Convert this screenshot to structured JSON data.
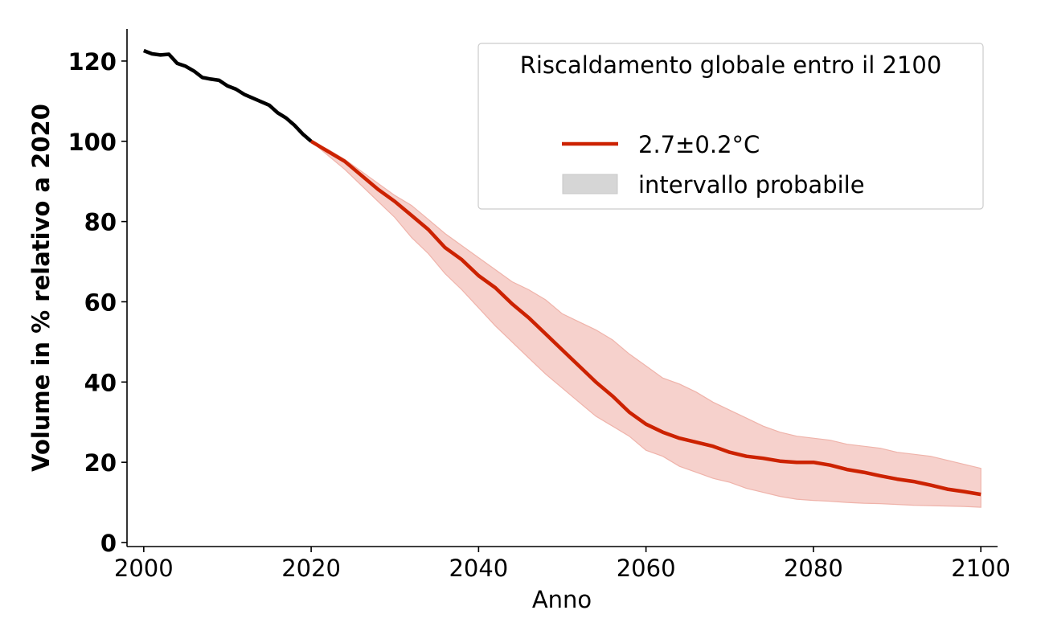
{
  "chart_data": {
    "type": "line",
    "title": "",
    "xlabel": "Anno",
    "ylabel": "Volume in % relativo a 2020",
    "xlim": [
      1998,
      2102
    ],
    "ylim": [
      -1,
      128
    ],
    "xticks": [
      2000,
      2020,
      2040,
      2060,
      2080,
      2100
    ],
    "yticks": [
      0,
      20,
      40,
      60,
      80,
      100,
      120
    ],
    "grid": false,
    "legend": {
      "placement": "upper right",
      "title": "Riscaldamento globale entro il 2100",
      "entries": [
        "2.7±0.2°C",
        "intervallo probabile"
      ]
    },
    "colors": {
      "historical": "#000000",
      "projection": "#cc2200",
      "band_fill": "#f6d1cc",
      "band_edge": "#efb3aa",
      "legend_patch": "#d6d6d6"
    },
    "series": [
      {
        "role": "historical",
        "x": [
          2000,
          2001,
          2002,
          2003,
          2004,
          2005,
          2006,
          2007,
          2008,
          2009,
          2010,
          2011,
          2012,
          2013,
          2014,
          2015,
          2016,
          2017,
          2018,
          2019,
          2020
        ],
        "y": [
          122.6,
          121.8,
          121.5,
          121.7,
          119.4,
          118.7,
          117.5,
          115.9,
          115.5,
          115.2,
          113.8,
          113.0,
          111.7,
          110.8,
          109.9,
          109.0,
          107.1,
          105.8,
          104.0,
          101.8,
          100.0
        ]
      },
      {
        "name": "2.7±0.2°C",
        "role": "projection",
        "x": [
          2020,
          2022,
          2024,
          2026,
          2028,
          2030,
          2032,
          2034,
          2036,
          2038,
          2040,
          2042,
          2044,
          2046,
          2048,
          2050,
          2052,
          2054,
          2056,
          2058,
          2060,
          2062,
          2064,
          2066,
          2068,
          2070,
          2072,
          2074,
          2076,
          2078,
          2080,
          2082,
          2084,
          2086,
          2088,
          2090,
          2092,
          2094,
          2096,
          2098,
          2100
        ],
        "y": [
          100.0,
          97.5,
          95.0,
          91.5,
          88.0,
          85.0,
          81.5,
          78.0,
          73.5,
          70.5,
          66.5,
          63.5,
          59.5,
          56.0,
          52.0,
          48.0,
          44.0,
          40.0,
          36.5,
          32.5,
          29.5,
          27.5,
          26.0,
          25.0,
          24.0,
          22.5,
          21.5,
          21.0,
          20.3,
          20.0,
          20.0,
          19.3,
          18.2,
          17.5,
          16.6,
          15.8,
          15.2,
          14.3,
          13.3,
          12.7,
          12.0
        ]
      }
    ],
    "band": {
      "name": "intervallo probabile",
      "x": [
        2020,
        2022,
        2024,
        2026,
        2028,
        2030,
        2032,
        2034,
        2036,
        2038,
        2040,
        2042,
        2044,
        2046,
        2048,
        2050,
        2052,
        2054,
        2056,
        2058,
        2060,
        2062,
        2064,
        2066,
        2068,
        2070,
        2072,
        2074,
        2076,
        2078,
        2080,
        2082,
        2084,
        2086,
        2088,
        2090,
        2092,
        2094,
        2096,
        2098,
        2100
      ],
      "lower": [
        100.0,
        96.5,
        93.0,
        89.0,
        85.0,
        81.0,
        76.0,
        72.0,
        67.0,
        63.0,
        58.5,
        54.0,
        50.0,
        46.0,
        42.0,
        38.5,
        35.0,
        31.5,
        29.0,
        26.5,
        23.0,
        21.5,
        19.0,
        17.5,
        16.0,
        15.0,
        13.5,
        12.5,
        11.5,
        10.8,
        10.5,
        10.3,
        10.0,
        9.8,
        9.7,
        9.5,
        9.3,
        9.2,
        9.1,
        9.0,
        8.8
      ],
      "upper": [
        100.0,
        98.0,
        95.5,
        92.5,
        89.5,
        86.5,
        84.0,
        80.5,
        77.0,
        74.0,
        71.0,
        68.0,
        65.0,
        63.0,
        60.5,
        57.0,
        55.0,
        53.0,
        50.5,
        47.0,
        44.0,
        41.0,
        39.5,
        37.5,
        35.0,
        33.0,
        31.0,
        29.0,
        27.5,
        26.5,
        26.0,
        25.5,
        24.5,
        24.0,
        23.5,
        22.5,
        22.0,
        21.5,
        20.5,
        19.5,
        18.5
      ]
    }
  }
}
